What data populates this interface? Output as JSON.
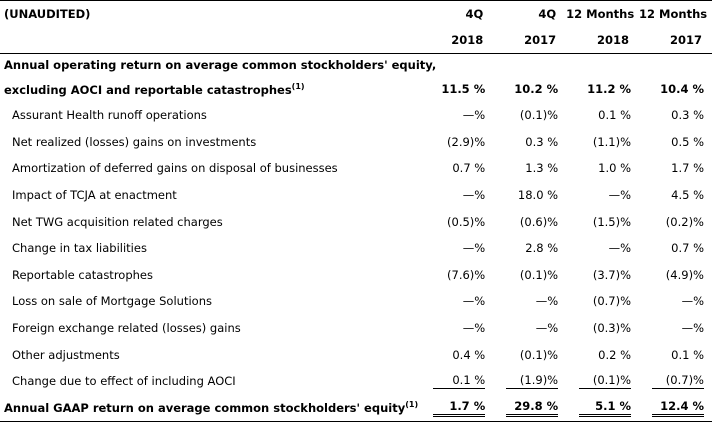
{
  "header": {
    "unaudited": "(UNAUDITED)",
    "cols_top": [
      "4Q",
      "4Q",
      "12 Months",
      "12 Months"
    ],
    "cols_bottom": [
      "2018",
      "2017",
      "2018",
      "2017"
    ]
  },
  "section": {
    "line1": "Annual operating return on average common stockholders' equity,",
    "line2": "excluding AOCI and reportable catastrophes",
    "line2_sup": "(1)",
    "values": [
      "11.5 %",
      "10.2 %",
      "11.2 %",
      "10.4 %"
    ]
  },
  "rows": [
    {
      "label": "Assurant Health runoff operations",
      "values": [
        "—%",
        "(0.1)%",
        "0.1 %",
        "0.3 %"
      ]
    },
    {
      "label": "Net realized (losses) gains on investments",
      "values": [
        "(2.9)%",
        "0.3 %",
        "(1.1)%",
        "0.5 %"
      ]
    },
    {
      "label": "Amortization of deferred gains on disposal of businesses",
      "values": [
        "0.7 %",
        "1.3 %",
        "1.0 %",
        "1.7 %"
      ]
    },
    {
      "label": "Impact of TCJA at enactment",
      "values": [
        "—%",
        "18.0 %",
        "—%",
        "4.5 %"
      ]
    },
    {
      "label": "Net TWG acquisition related charges",
      "values": [
        "(0.5)%",
        "(0.6)%",
        "(1.5)%",
        "(0.2)%"
      ]
    },
    {
      "label": "Change in tax liabilities",
      "values": [
        "—%",
        "2.8 %",
        "—%",
        "0.7 %"
      ]
    },
    {
      "label": "Reportable catastrophes",
      "values": [
        "(7.6)%",
        "(0.1)%",
        "(3.7)%",
        "(4.9)%"
      ]
    },
    {
      "label": "Loss on sale of Mortgage Solutions",
      "values": [
        "—%",
        "—%",
        "(0.7)%",
        "—%"
      ]
    },
    {
      "label": "Foreign exchange related (losses) gains",
      "values": [
        "—%",
        "—%",
        "(0.3)%",
        "—%"
      ]
    },
    {
      "label": "Other adjustments",
      "values": [
        "0.4 %",
        "(0.1)%",
        "0.2 %",
        "0.1 %"
      ]
    },
    {
      "label": "Change due to effect of including AOCI",
      "values": [
        "0.1 %",
        "(1.9)%",
        "(0.1)%",
        "(0.7)%"
      ]
    }
  ],
  "total": {
    "label": "Annual GAAP return on average common stockholders' equity",
    "label_sup": "(1)",
    "values": [
      "1.7 %",
      "29.8 %",
      "5.1 %",
      "12.4 %"
    ]
  }
}
